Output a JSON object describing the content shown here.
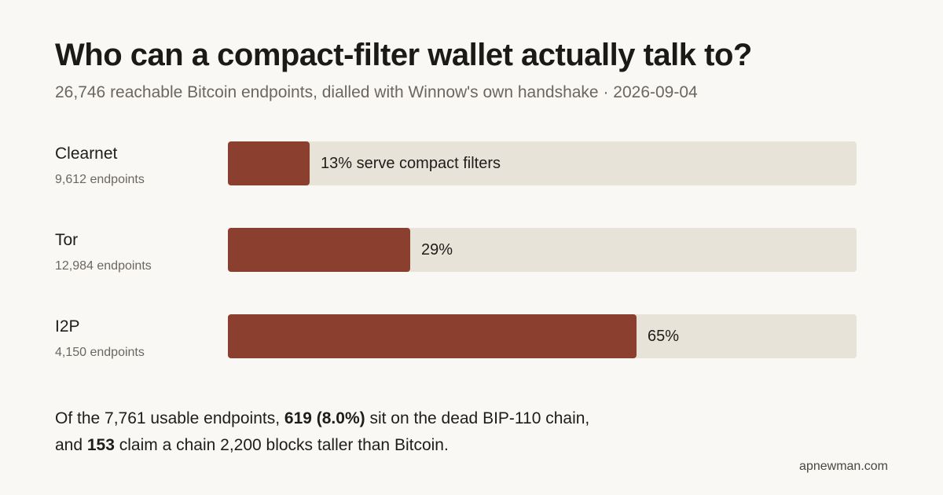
{
  "chart_data": {
    "type": "bar",
    "orientation": "horizontal",
    "title": "Who can a compact-filter wallet actually talk to?",
    "subtitle": "26,746 reachable Bitcoin endpoints, dialled with Winnow's own handshake · 2026-09-04",
    "categories": [
      "Clearnet",
      "Tor",
      "I2P"
    ],
    "counts": [
      "9,612 endpoints",
      "12,984 endpoints",
      "4,150 endpoints"
    ],
    "values": [
      13,
      29,
      65
    ],
    "value_labels": [
      "13% serve compact filters",
      "29%",
      "65%"
    ],
    "xlim": [
      0,
      100
    ],
    "unit": "%",
    "grid": false,
    "colors": {
      "fill": "#8b3f2f",
      "track": "#e8e3d8"
    }
  },
  "footnote": {
    "line1_pre": "Of the 7,761 usable endpoints, ",
    "line1_bold": "619 (8.0%)",
    "line1_post": " sit on the dead BIP-110 chain,",
    "line2_pre": "and ",
    "line2_bold": "153",
    "line2_post": " claim a chain 2,200 blocks taller than Bitcoin."
  },
  "credit": "apnewman.com"
}
